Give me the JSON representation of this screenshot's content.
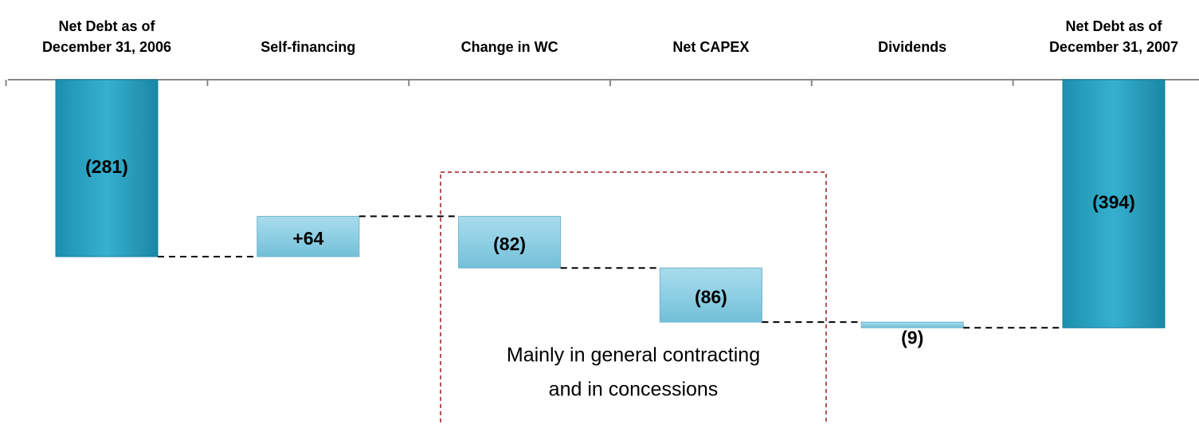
{
  "chart_data": {
    "type": "waterfall",
    "categories": [
      "Net Debt as of December 31, 2006",
      "Self-financing",
      "Change in WC",
      "Net CAPEX",
      "Dividends",
      "Net Debt as of December 31, 2007"
    ],
    "values": [
      -281,
      64,
      -82,
      -86,
      -9,
      -394
    ],
    "value_labels": [
      "(281)",
      "+64",
      "(82)",
      "(86)",
      "(9)",
      "(394)"
    ],
    "annotation": [
      "Mainly in general contracting",
      "and in concessions"
    ]
  }
}
